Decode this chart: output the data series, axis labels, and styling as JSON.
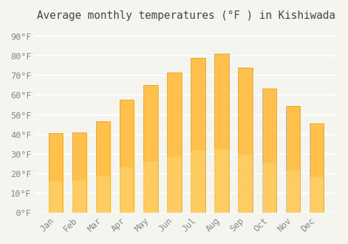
{
  "title": "Average monthly temperatures (°F ) in Kishiwada",
  "months": [
    "Jan",
    "Feb",
    "Mar",
    "Apr",
    "May",
    "Jun",
    "Jul",
    "Aug",
    "Sep",
    "Oct",
    "Nov",
    "Dec"
  ],
  "values": [
    40.5,
    41.0,
    46.5,
    57.5,
    65.0,
    71.5,
    79.0,
    81.0,
    74.0,
    63.5,
    54.5,
    45.5
  ],
  "bar_color_top": "#FFA500",
  "bar_color_bottom": "#FFD580",
  "background_color": "#f5f5f0",
  "grid_color": "#ffffff",
  "ylim": [
    0,
    95
  ],
  "yticks": [
    0,
    10,
    20,
    30,
    40,
    50,
    60,
    70,
    80,
    90
  ],
  "title_fontsize": 11,
  "tick_fontsize": 9
}
